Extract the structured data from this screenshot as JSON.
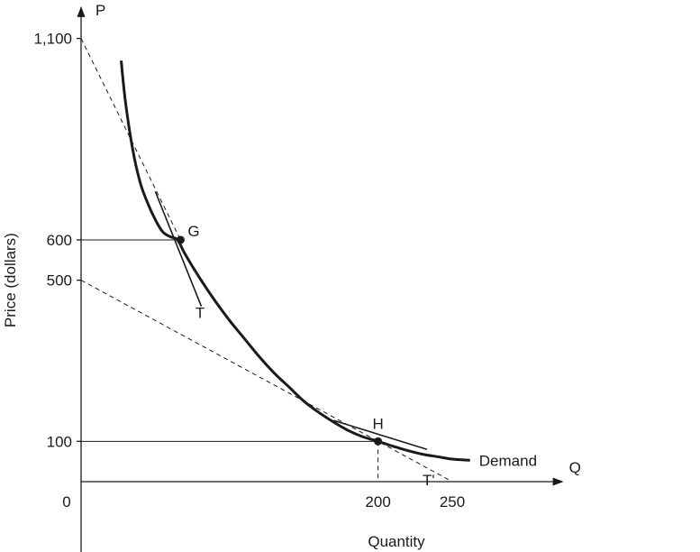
{
  "chart_data": {
    "type": "line",
    "x_axis": {
      "symbol": "Q",
      "label": "Quantity",
      "ticks": [
        0,
        200,
        250
      ],
      "tick_labels": [
        "0",
        "200",
        "250"
      ],
      "range": [
        0,
        325
      ]
    },
    "y_axis": {
      "symbol": "P",
      "label": "Price (dollars)",
      "ticks": [
        100,
        500,
        600,
        1100
      ],
      "tick_labels": [
        "100",
        "500",
        "600",
        "1,100"
      ],
      "range": [
        -175,
        1180
      ]
    },
    "grid": false,
    "legend": "none",
    "demand": {
      "name": "Demand",
      "points": [
        [
          27,
          1045
        ],
        [
          30,
          940
        ],
        [
          35,
          820
        ],
        [
          40,
          740
        ],
        [
          45,
          690
        ],
        [
          50,
          650
        ],
        [
          55,
          620
        ],
        [
          60,
          608
        ],
        [
          65,
          600
        ],
        [
          70,
          565
        ],
        [
          80,
          505
        ],
        [
          90,
          450
        ],
        [
          100,
          400
        ],
        [
          110,
          355
        ],
        [
          120,
          310
        ],
        [
          130,
          270
        ],
        [
          140,
          235
        ],
        [
          150,
          200
        ],
        [
          160,
          172
        ],
        [
          170,
          148
        ],
        [
          180,
          127
        ],
        [
          190,
          111
        ],
        [
          200,
          100
        ],
        [
          210,
          88
        ],
        [
          220,
          77
        ],
        [
          230,
          68
        ],
        [
          240,
          62
        ],
        [
          250,
          56
        ],
        [
          262,
          53
        ]
      ]
    },
    "tangent_lines": [
      {
        "from": [
          0,
          1100
        ],
        "to": [
          67,
          600
        ],
        "style": "dashed"
      },
      {
        "from": [
          50,
          720
        ],
        "to": [
          81,
          435
        ],
        "style": "solid"
      },
      {
        "from": [
          0,
          500
        ],
        "to": [
          250,
          0
        ],
        "style": "dashed"
      },
      {
        "from": [
          170,
          152
        ],
        "to": [
          233,
          80
        ],
        "style": "solid"
      }
    ],
    "points": [
      {
        "label": "G",
        "x": 67,
        "y": 600
      },
      {
        "label": "H",
        "x": 200,
        "y": 100
      }
    ],
    "guides": [
      {
        "from": [
          0,
          600
        ],
        "to": [
          67,
          600
        ],
        "style": "solid"
      },
      {
        "from": [
          0,
          100
        ],
        "to": [
          200,
          100
        ],
        "style": "solid"
      },
      {
        "from": [
          200,
          100
        ],
        "to": [
          200,
          0
        ],
        "style": "dashed"
      }
    ],
    "annotations": [
      {
        "text": "G",
        "x": 67,
        "y": 600,
        "anchor": "upper-right"
      },
      {
        "text": "T",
        "x": 77,
        "y": 460,
        "anchor": "below"
      },
      {
        "text": "H",
        "x": 200,
        "y": 100,
        "anchor": "above"
      },
      {
        "text": "T'",
        "x": 230,
        "y": 45,
        "anchor": "below"
      },
      {
        "text": "Demand",
        "x": 262,
        "y": 53,
        "anchor": "right"
      }
    ]
  }
}
